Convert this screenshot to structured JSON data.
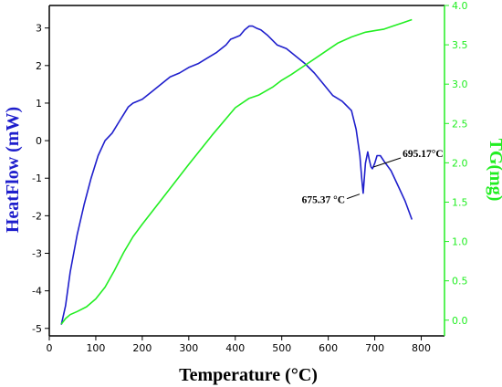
{
  "chart_data": {
    "type": "line",
    "xlabel": "Temperature (°C)",
    "ylabel_left": "HeatFlow (mW)",
    "ylabel_right": "TG(mg)",
    "xlim": [
      0,
      850
    ],
    "ylim_left": [
      -5.2,
      3.6
    ],
    "ylim_right": [
      -0.2,
      4.0
    ],
    "x_ticks": [
      0,
      100,
      200,
      300,
      400,
      500,
      600,
      700,
      800
    ],
    "y_ticks_left": [
      -5,
      -4,
      -3,
      -2,
      -1,
      0,
      1,
      2,
      3
    ],
    "y_ticks_right": [
      "0.0",
      "0.5",
      "1.0",
      "1.5",
      "2.0",
      "2.5",
      "3.0",
      "3.5",
      "4.0"
    ],
    "grid": false,
    "colors": {
      "heatflow": "#1f1fcc",
      "tg": "#22ee22",
      "axis": "#000000"
    },
    "series": [
      {
        "axis": "left",
        "x": [
          26,
          35,
          45,
          60,
          75,
          90,
          105,
          120,
          135,
          150,
          160,
          170,
          180,
          200,
          220,
          240,
          260,
          280,
          300,
          320,
          340,
          360,
          380,
          390,
          400,
          410,
          420,
          430,
          437,
          445,
          455,
          470,
          490,
          510,
          530,
          550,
          570,
          590,
          610,
          630,
          650,
          660,
          668,
          672,
          675,
          680,
          685,
          688,
          692,
          695,
          700,
          705,
          712,
          720,
          735,
          750,
          765,
          780
        ],
        "y": [
          -4.9,
          -4.4,
          -3.5,
          -2.5,
          -1.7,
          -1.0,
          -0.4,
          0.0,
          0.2,
          0.5,
          0.7,
          0.9,
          1.0,
          1.1,
          1.3,
          1.5,
          1.7,
          1.8,
          1.95,
          2.05,
          2.2,
          2.35,
          2.55,
          2.7,
          2.75,
          2.8,
          2.95,
          3.05,
          3.05,
          3.0,
          2.95,
          2.8,
          2.55,
          2.45,
          2.25,
          2.05,
          1.8,
          1.5,
          1.2,
          1.05,
          0.8,
          0.3,
          -0.4,
          -1.0,
          -1.4,
          -0.6,
          -0.3,
          -0.5,
          -0.7,
          -0.75,
          -0.6,
          -0.4,
          -0.4,
          -0.55,
          -0.8,
          -1.2,
          -1.6,
          -2.1
        ]
      },
      {
        "axis": "right",
        "x": [
          26,
          35,
          45,
          60,
          80,
          100,
          120,
          140,
          160,
          180,
          200,
          250,
          300,
          350,
          400,
          430,
          450,
          480,
          500,
          520,
          550,
          580,
          600,
          620,
          650,
          680,
          700,
          720,
          740,
          760,
          780
        ],
        "y": [
          -0.05,
          0.02,
          0.07,
          0.11,
          0.17,
          0.27,
          0.42,
          0.63,
          0.86,
          1.06,
          1.22,
          1.6,
          1.98,
          2.35,
          2.7,
          2.82,
          2.86,
          2.96,
          3.05,
          3.12,
          3.24,
          3.36,
          3.44,
          3.52,
          3.6,
          3.66,
          3.68,
          3.7,
          3.74,
          3.78,
          3.82
        ]
      }
    ],
    "annotations": [
      {
        "text": "675.37 °C",
        "x": 675.37,
        "y": -1.4
      },
      {
        "text": "695.17°C",
        "x": 695.17,
        "y": -0.8
      }
    ]
  }
}
